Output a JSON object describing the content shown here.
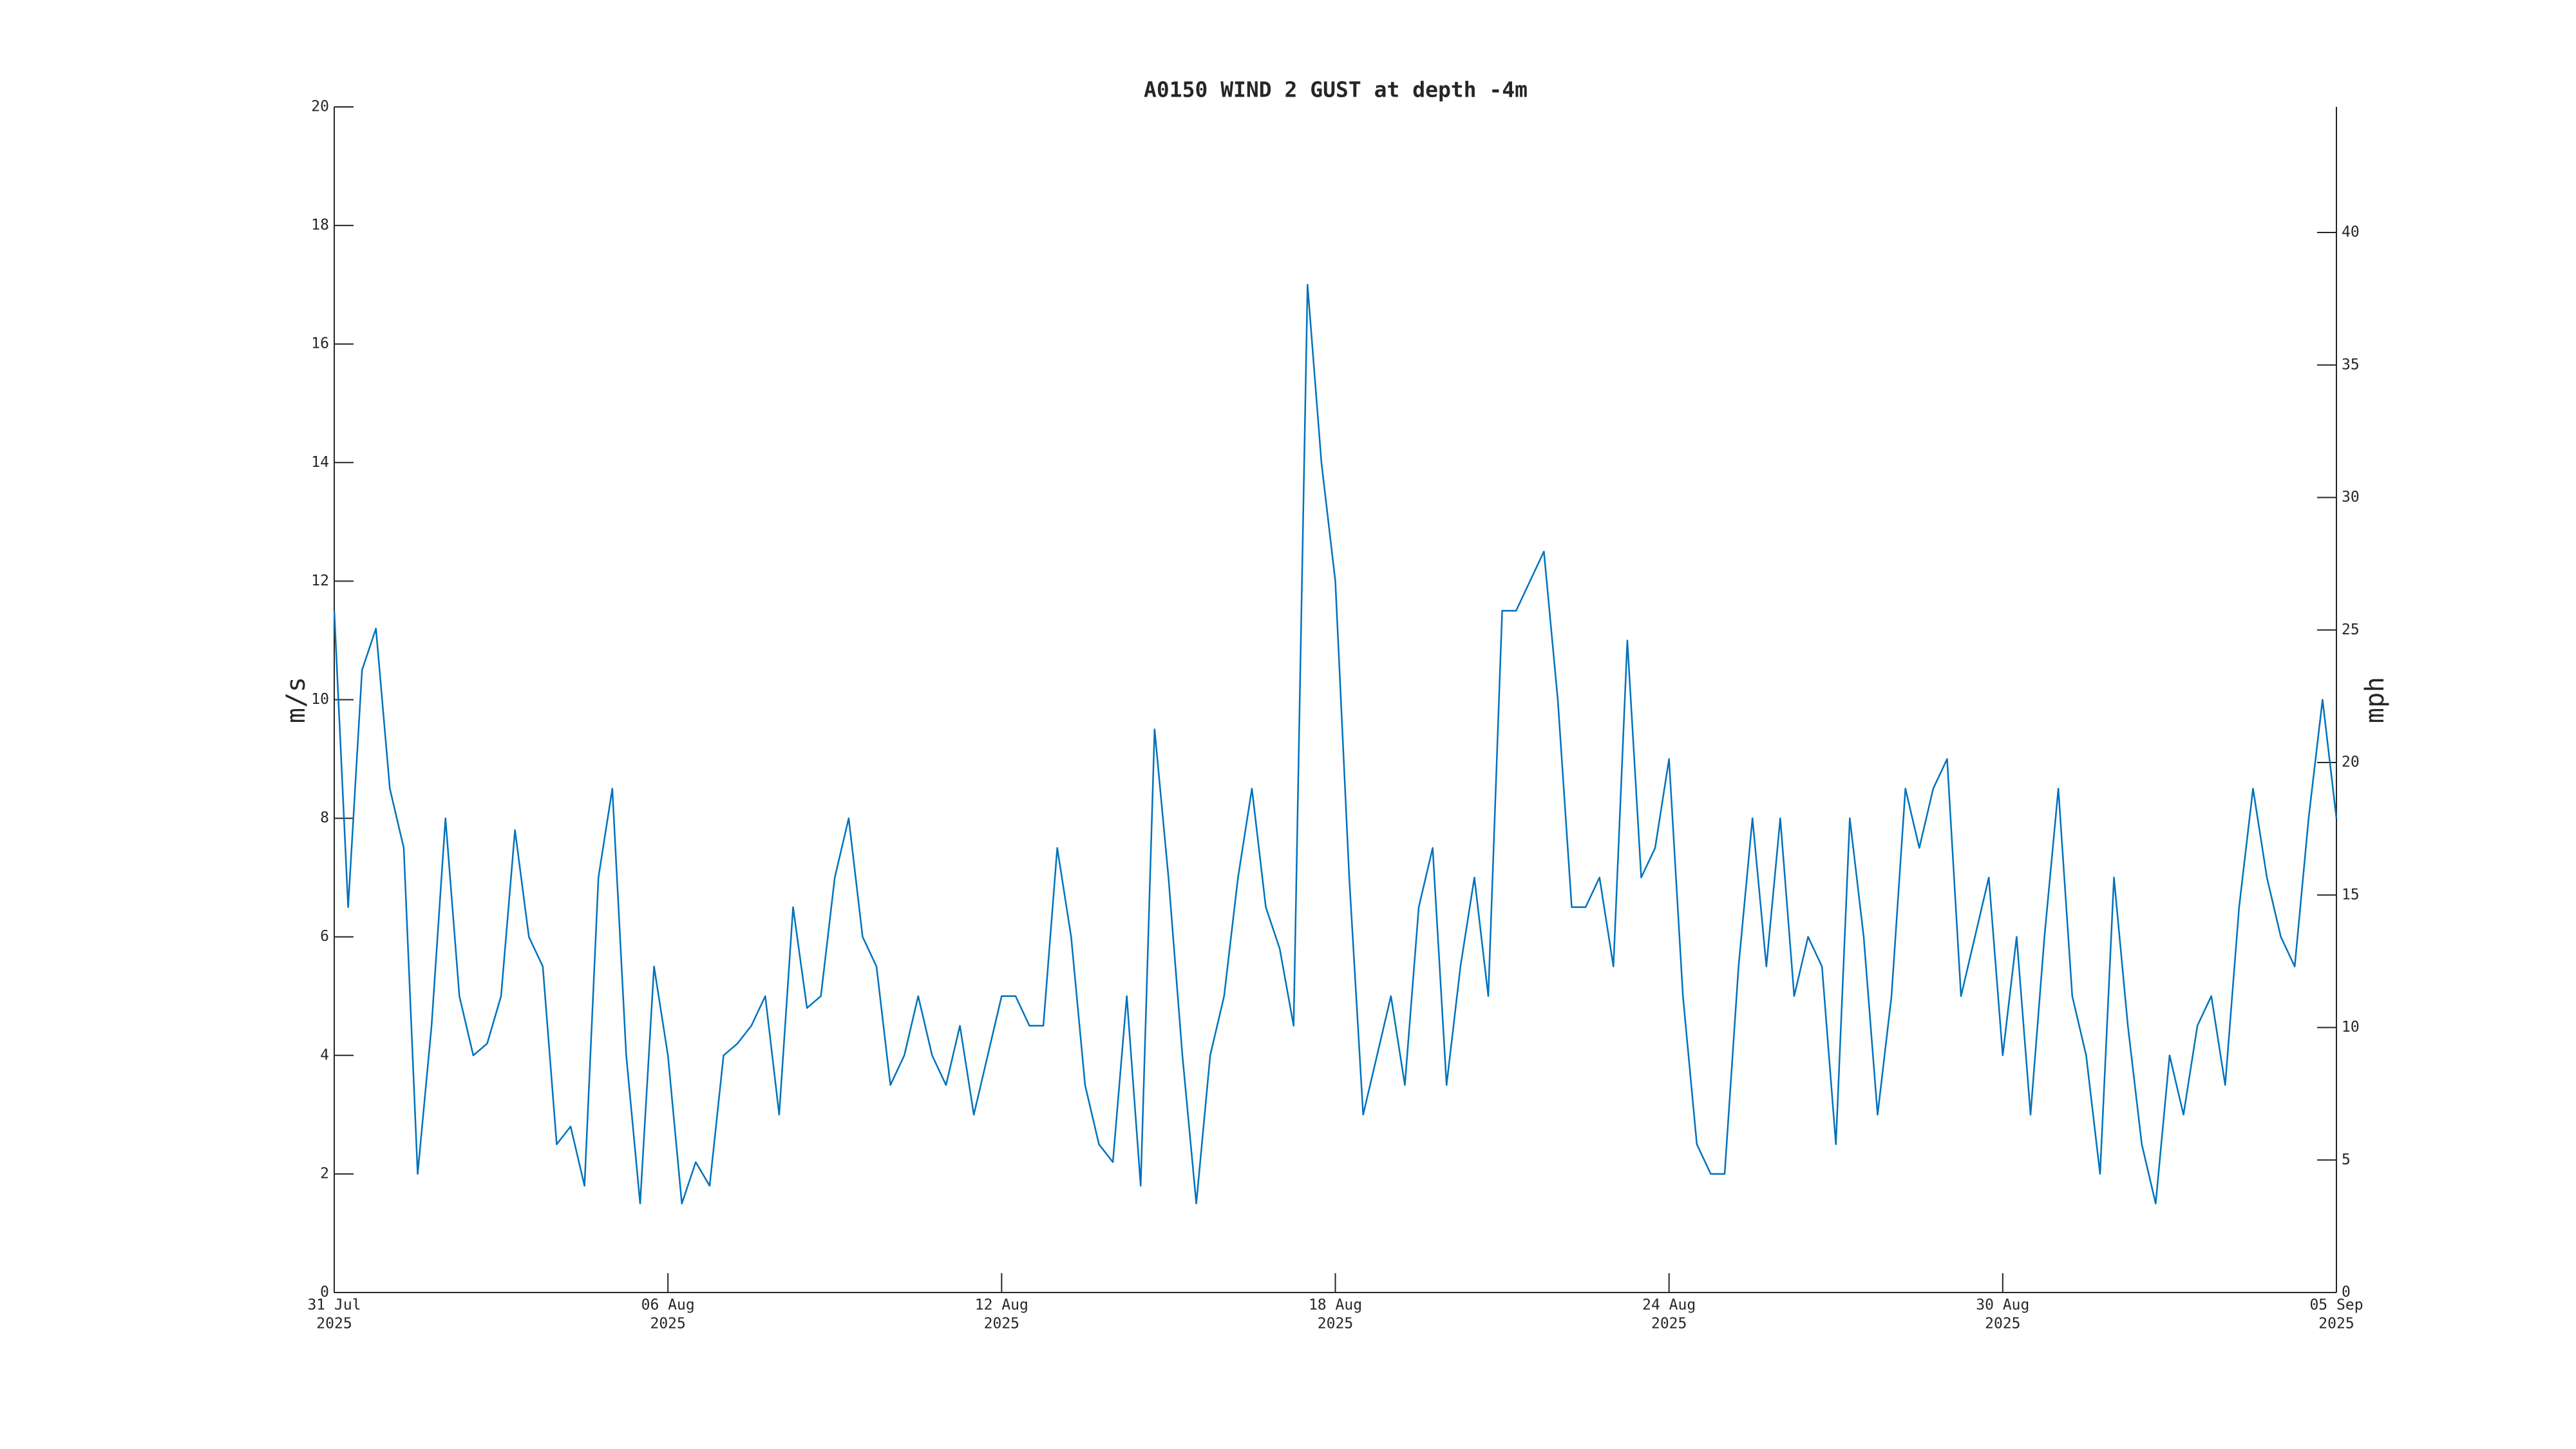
{
  "chart_data": {
    "type": "line",
    "title": "A0150 WIND 2 GUST at depth -4m",
    "y_label": "m/s",
    "y2_label": "mph",
    "color": "#0072bd",
    "xlim": [
      "2025-07-31",
      "2025-09-05"
    ],
    "xticks": [
      {
        "value": "2025-07-31",
        "label": [
          "31 Jul",
          "2025"
        ]
      },
      {
        "value": "2025-08-06",
        "label": [
          "06 Aug",
          "2025"
        ]
      },
      {
        "value": "2025-08-12",
        "label": [
          "12 Aug",
          "2025"
        ]
      },
      {
        "value": "2025-08-18",
        "label": [
          "18 Aug",
          "2025"
        ]
      },
      {
        "value": "2025-08-24",
        "label": [
          "24 Aug",
          "2025"
        ]
      },
      {
        "value": "2025-08-30",
        "label": [
          "30 Aug",
          "2025"
        ]
      },
      {
        "value": "2025-09-05",
        "label": [
          "05 Sep",
          "2025"
        ]
      }
    ],
    "ylim": [
      0,
      20
    ],
    "yticks": [
      0,
      2,
      4,
      6,
      8,
      10,
      12,
      14,
      16,
      18,
      20
    ],
    "y2lim": [
      0,
      44.74
    ],
    "y2ticks": [
      0,
      5,
      10,
      15,
      20,
      25,
      30,
      35,
      40
    ],
    "x": [
      "2025-07-31T00:00",
      "2025-07-31T06:00",
      "2025-07-31T12:00",
      "2025-07-31T18:00",
      "2025-08-01T00:00",
      "2025-08-01T06:00",
      "2025-08-01T12:00",
      "2025-08-01T18:00",
      "2025-08-02T00:00",
      "2025-08-02T06:00",
      "2025-08-02T12:00",
      "2025-08-02T18:00",
      "2025-08-03T00:00",
      "2025-08-03T06:00",
      "2025-08-03T12:00",
      "2025-08-03T18:00",
      "2025-08-04T00:00",
      "2025-08-04T06:00",
      "2025-08-04T12:00",
      "2025-08-04T18:00",
      "2025-08-05T00:00",
      "2025-08-05T06:00",
      "2025-08-05T12:00",
      "2025-08-05T18:00",
      "2025-08-06T00:00",
      "2025-08-06T06:00",
      "2025-08-06T12:00",
      "2025-08-06T18:00",
      "2025-08-07T00:00",
      "2025-08-07T06:00",
      "2025-08-07T12:00",
      "2025-08-07T18:00",
      "2025-08-08T00:00",
      "2025-08-08T06:00",
      "2025-08-08T12:00",
      "2025-08-08T18:00",
      "2025-08-09T00:00",
      "2025-08-09T06:00",
      "2025-08-09T12:00",
      "2025-08-09T18:00",
      "2025-08-10T00:00",
      "2025-08-10T06:00",
      "2025-08-10T12:00",
      "2025-08-10T18:00",
      "2025-08-11T00:00",
      "2025-08-11T06:00",
      "2025-08-11T12:00",
      "2025-08-11T18:00",
      "2025-08-12T00:00",
      "2025-08-12T06:00",
      "2025-08-12T12:00",
      "2025-08-12T18:00",
      "2025-08-13T00:00",
      "2025-08-13T06:00",
      "2025-08-13T12:00",
      "2025-08-13T18:00",
      "2025-08-14T00:00",
      "2025-08-14T06:00",
      "2025-08-14T12:00",
      "2025-08-14T18:00",
      "2025-08-15T00:00",
      "2025-08-15T06:00",
      "2025-08-15T12:00",
      "2025-08-15T18:00",
      "2025-08-16T00:00",
      "2025-08-16T06:00",
      "2025-08-16T12:00",
      "2025-08-16T18:00",
      "2025-08-17T00:00",
      "2025-08-17T06:00",
      "2025-08-17T12:00",
      "2025-08-17T18:00",
      "2025-08-18T00:00",
      "2025-08-18T06:00",
      "2025-08-18T12:00",
      "2025-08-18T18:00",
      "2025-08-19T00:00",
      "2025-08-19T06:00",
      "2025-08-19T12:00",
      "2025-08-19T18:00",
      "2025-08-20T00:00",
      "2025-08-20T06:00",
      "2025-08-20T12:00",
      "2025-08-20T18:00",
      "2025-08-21T00:00",
      "2025-08-21T06:00",
      "2025-08-21T12:00",
      "2025-08-21T18:00",
      "2025-08-22T00:00",
      "2025-08-22T06:00",
      "2025-08-22T12:00",
      "2025-08-22T18:00",
      "2025-08-23T00:00",
      "2025-08-23T06:00",
      "2025-08-23T12:00",
      "2025-08-23T18:00",
      "2025-08-24T00:00",
      "2025-08-24T06:00",
      "2025-08-24T12:00",
      "2025-08-24T18:00",
      "2025-08-25T00:00",
      "2025-08-25T06:00",
      "2025-08-25T12:00",
      "2025-08-25T18:00",
      "2025-08-26T00:00",
      "2025-08-26T06:00",
      "2025-08-26T12:00",
      "2025-08-26T18:00",
      "2025-08-27T00:00",
      "2025-08-27T06:00",
      "2025-08-27T12:00",
      "2025-08-27T18:00",
      "2025-08-28T00:00",
      "2025-08-28T06:00",
      "2025-08-28T12:00",
      "2025-08-28T18:00",
      "2025-08-29T00:00",
      "2025-08-29T06:00",
      "2025-08-29T12:00",
      "2025-08-29T18:00",
      "2025-08-30T00:00",
      "2025-08-30T06:00",
      "2025-08-30T12:00",
      "2025-08-30T18:00",
      "2025-08-31T00:00",
      "2025-08-31T06:00",
      "2025-08-31T12:00",
      "2025-08-31T18:00",
      "2025-09-01T00:00",
      "2025-09-01T06:00",
      "2025-09-01T12:00",
      "2025-09-01T18:00",
      "2025-09-02T00:00",
      "2025-09-02T06:00",
      "2025-09-02T12:00",
      "2025-09-02T18:00",
      "2025-09-03T00:00",
      "2025-09-03T06:00",
      "2025-09-03T12:00",
      "2025-09-03T18:00",
      "2025-09-04T00:00",
      "2025-09-04T06:00",
      "2025-09-04T12:00",
      "2025-09-04T18:00",
      "2025-09-05T00:00"
    ],
    "values": [
      11.5,
      6.5,
      10.5,
      11.2,
      8.5,
      7.5,
      2,
      4.5,
      8,
      5,
      4,
      4.2,
      5,
      7.8,
      6,
      5.5,
      2.5,
      2.8,
      1.8,
      7,
      8.5,
      4,
      1.5,
      5.5,
      4,
      1.5,
      2.2,
      1.8,
      4,
      4.2,
      4.5,
      5,
      3,
      6.5,
      4.8,
      5,
      7,
      8,
      6,
      5.5,
      3.5,
      4,
      5,
      4,
      3.5,
      4.5,
      3,
      4,
      5,
      5,
      4.5,
      4.5,
      7.5,
      6,
      3.5,
      2.5,
      2.2,
      5,
      1.8,
      9.5,
      7,
      4,
      1.5,
      4,
      5,
      7,
      8.5,
      6.5,
      5.8,
      4.5,
      17,
      14,
      12,
      7,
      3,
      4,
      5,
      3.5,
      6.5,
      7.5,
      3.5,
      5.5,
      7,
      5,
      11.5,
      11.5,
      12,
      12.5,
      10,
      6.5,
      6.5,
      7,
      5.5,
      11,
      7,
      7.5,
      9,
      5,
      2.5,
      2,
      2,
      5.5,
      8,
      5.5,
      8,
      5,
      6,
      5.5,
      2.5,
      8,
      6,
      3,
      5,
      8.5,
      7.5,
      8.5,
      9,
      5,
      6,
      7,
      4,
      6,
      3,
      6,
      8.5,
      5,
      4,
      2,
      7,
      4.5,
      2.5,
      1.5,
      4,
      3,
      4.5,
      5,
      3.5,
      6.5,
      8.5,
      7,
      6,
      5.5,
      8,
      10,
      8
    ]
  }
}
